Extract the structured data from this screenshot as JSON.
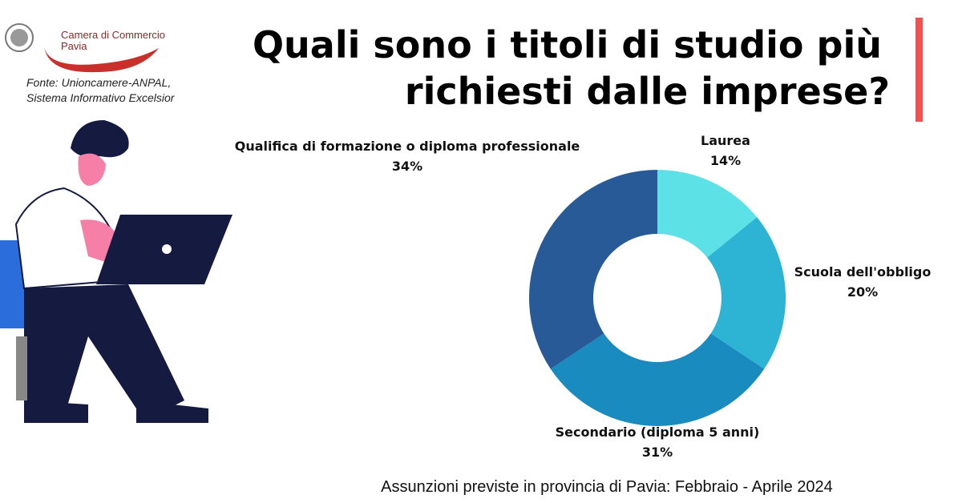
{
  "logo": {
    "line1": "Camera di Commercio",
    "line2": "Pavia"
  },
  "source": [
    "Fonte: Unioncamere-ANPAL,",
    "Sistema Informativo Excelsior"
  ],
  "chart_data": {
    "type": "pie",
    "donut": true,
    "title": [
      "Quali sono i titoli di studio più",
      "richiesti dalle imprese?"
    ],
    "subtitle": "Assunzioni previste in provincia di Pavia: Febbraio - Aprile 2024",
    "categories": [
      "Laurea",
      "Scuola dell'obbligo",
      "Secondario (diploma 5 anni)",
      "Qualifica di formazione o diploma professionale"
    ],
    "values": [
      14,
      20,
      31,
      34
    ],
    "value_labels": [
      "14%",
      "20%",
      "31%",
      "34%"
    ],
    "colors": [
      "#5ce1e6",
      "#2db3d4",
      "#1a8bbf",
      "#275a96"
    ]
  }
}
